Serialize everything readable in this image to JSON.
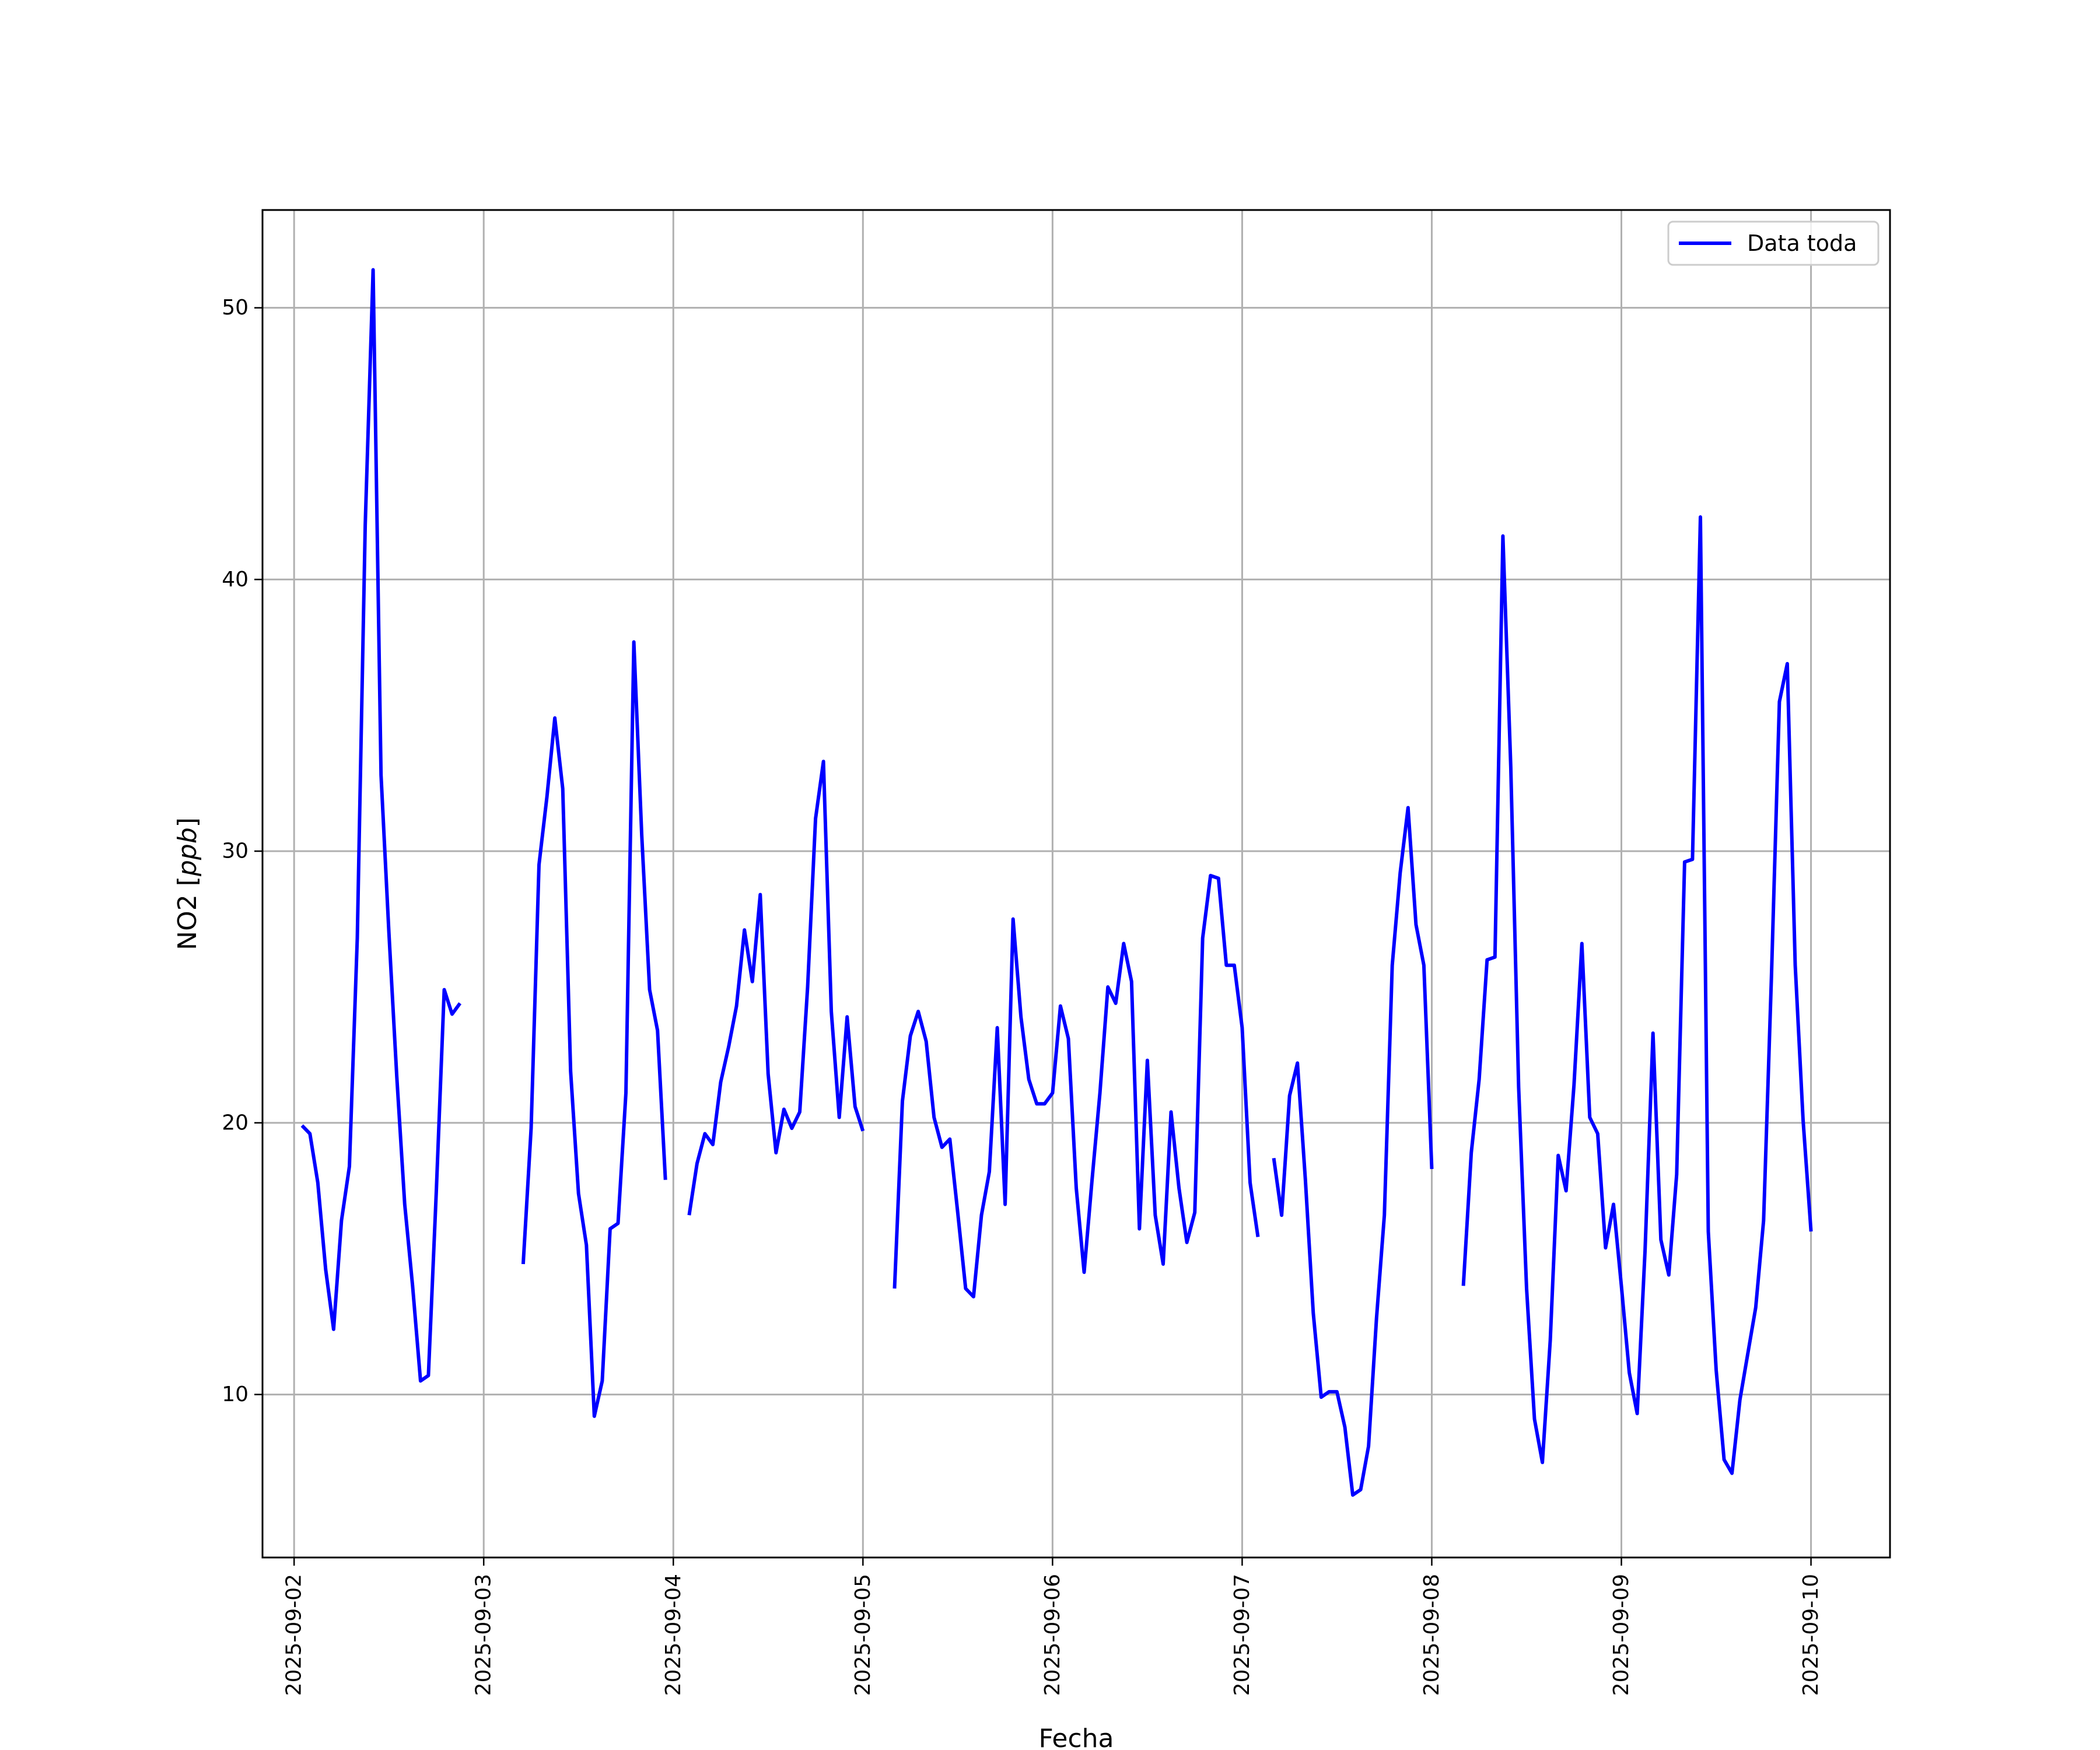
{
  "chart_data": {
    "type": "line",
    "xlabel": "Fecha",
    "ylabel_main": "NO2 [",
    "ylabel_unit": "ppb",
    "ylabel_close": "]",
    "xlim": [
      "2025-09-01T20:00",
      "2025-09-10T10:00"
    ],
    "ylim": [
      4,
      53.6
    ],
    "x_ticks": [
      "2025-09-02",
      "2025-09-03",
      "2025-09-04",
      "2025-09-05",
      "2025-09-06",
      "2025-09-07",
      "2025-09-08",
      "2025-09-09",
      "2025-09-10"
    ],
    "y_ticks": [
      10,
      20,
      30,
      40,
      50
    ],
    "y_tick_labels": [
      "10",
      "20",
      "30",
      "40",
      "50"
    ],
    "grid": true,
    "legend_position": "top-right",
    "colors": {
      "series": "#0000ff"
    },
    "series": [
      {
        "name": "Data toda",
        "segments": [
          [
            [
              "2025-09-02T01:00",
              19.9
            ],
            [
              "2025-09-02T02:00",
              19.6
            ],
            [
              "2025-09-02T03:00",
              17.8
            ],
            [
              "2025-09-02T04:00",
              14.6
            ],
            [
              "2025-09-02T05:00",
              12.4
            ],
            [
              "2025-09-02T06:00",
              16.4
            ],
            [
              "2025-09-02T07:00",
              18.4
            ],
            [
              "2025-09-02T08:00",
              26.8
            ],
            [
              "2025-09-02T09:00",
              42.0
            ],
            [
              "2025-09-02T10:00",
              51.4
            ],
            [
              "2025-09-02T11:00",
              32.8
            ],
            [
              "2025-09-02T12:00",
              27.0
            ],
            [
              "2025-09-02T13:00",
              21.7
            ],
            [
              "2025-09-02T14:00",
              17.0
            ],
            [
              "2025-09-02T15:00",
              14.0
            ],
            [
              "2025-09-02T16:00",
              10.5
            ],
            [
              "2025-09-02T17:00",
              10.7
            ],
            [
              "2025-09-02T18:00",
              17.5
            ],
            [
              "2025-09-02T19:00",
              24.9
            ],
            [
              "2025-09-02T20:00",
              24.0
            ],
            [
              "2025-09-02T21:00",
              24.4
            ]
          ],
          [
            [
              "2025-09-03T05:00",
              14.8
            ],
            [
              "2025-09-03T06:00",
              19.8
            ],
            [
              "2025-09-03T07:00",
              29.5
            ],
            [
              "2025-09-03T08:00",
              32.0
            ],
            [
              "2025-09-03T09:00",
              34.9
            ],
            [
              "2025-09-03T10:00",
              32.3
            ],
            [
              "2025-09-03T11:00",
              21.9
            ],
            [
              "2025-09-03T12:00",
              17.4
            ],
            [
              "2025-09-03T13:00",
              15.5
            ],
            [
              "2025-09-03T14:00",
              9.2
            ],
            [
              "2025-09-03T15:00",
              10.5
            ],
            [
              "2025-09-03T16:00",
              16.1
            ],
            [
              "2025-09-03T17:00",
              16.3
            ],
            [
              "2025-09-03T18:00",
              21.1
            ],
            [
              "2025-09-03T19:00",
              37.7
            ],
            [
              "2025-09-03T20:00",
              30.6
            ],
            [
              "2025-09-03T21:00",
              24.9
            ],
            [
              "2025-09-03T22:00",
              23.4
            ],
            [
              "2025-09-03T23:00",
              17.9
            ]
          ],
          [
            [
              "2025-09-04T02:00",
              16.6
            ],
            [
              "2025-09-04T03:00",
              18.5
            ],
            [
              "2025-09-04T04:00",
              19.6
            ],
            [
              "2025-09-04T05:00",
              19.2
            ],
            [
              "2025-09-04T06:00",
              21.5
            ],
            [
              "2025-09-04T07:00",
              22.8
            ],
            [
              "2025-09-04T08:00",
              24.3
            ],
            [
              "2025-09-04T09:00",
              27.1
            ],
            [
              "2025-09-04T10:00",
              25.2
            ],
            [
              "2025-09-04T11:00",
              28.4
            ],
            [
              "2025-09-04T12:00",
              21.8
            ],
            [
              "2025-09-04T13:00",
              18.9
            ],
            [
              "2025-09-04T14:00",
              20.5
            ],
            [
              "2025-09-04T15:00",
              19.8
            ],
            [
              "2025-09-04T16:00",
              20.4
            ],
            [
              "2025-09-04T17:00",
              25.0
            ],
            [
              "2025-09-04T18:00",
              31.2
            ],
            [
              "2025-09-04T19:00",
              33.3
            ],
            [
              "2025-09-04T20:00",
              24.1
            ],
            [
              "2025-09-04T21:00",
              20.2
            ],
            [
              "2025-09-04T22:00",
              23.9
            ],
            [
              "2025-09-04T23:00",
              20.6
            ],
            [
              "2025-09-05T00:00",
              19.7
            ]
          ],
          [
            [
              "2025-09-05T04:00",
              13.9
            ],
            [
              "2025-09-05T05:00",
              20.8
            ],
            [
              "2025-09-05T06:00",
              23.2
            ],
            [
              "2025-09-05T07:00",
              24.1
            ],
            [
              "2025-09-05T08:00",
              23.0
            ],
            [
              "2025-09-05T09:00",
              20.2
            ],
            [
              "2025-09-05T10:00",
              19.1
            ],
            [
              "2025-09-05T11:00",
              19.4
            ],
            [
              "2025-09-05T12:00",
              16.7
            ],
            [
              "2025-09-05T13:00",
              13.9
            ],
            [
              "2025-09-05T14:00",
              13.6
            ],
            [
              "2025-09-05T15:00",
              16.6
            ],
            [
              "2025-09-05T16:00",
              18.2
            ],
            [
              "2025-09-05T17:00",
              23.5
            ],
            [
              "2025-09-05T18:00",
              17.0
            ],
            [
              "2025-09-05T19:00",
              27.5
            ],
            [
              "2025-09-05T20:00",
              23.9
            ],
            [
              "2025-09-05T21:00",
              21.6
            ],
            [
              "2025-09-05T22:00",
              20.7
            ],
            [
              "2025-09-05T23:00",
              20.7
            ],
            [
              "2025-09-06T00:00",
              21.1
            ],
            [
              "2025-09-06T01:00",
              24.3
            ],
            [
              "2025-09-06T02:00",
              23.1
            ],
            [
              "2025-09-06T03:00",
              17.6
            ],
            [
              "2025-09-06T04:00",
              14.5
            ],
            [
              "2025-09-06T05:00",
              17.9
            ],
            [
              "2025-09-06T06:00",
              21.1
            ],
            [
              "2025-09-06T07:00",
              25.0
            ],
            [
              "2025-09-06T08:00",
              24.4
            ],
            [
              "2025-09-06T09:00",
              26.6
            ],
            [
              "2025-09-06T10:00",
              25.2
            ],
            [
              "2025-09-06T11:00",
              16.1
            ],
            [
              "2025-09-06T12:00",
              22.3
            ],
            [
              "2025-09-06T13:00",
              16.6
            ],
            [
              "2025-09-06T14:00",
              14.8
            ],
            [
              "2025-09-06T15:00",
              20.4
            ],
            [
              "2025-09-06T16:00",
              17.6
            ],
            [
              "2025-09-06T17:00",
              15.6
            ],
            [
              "2025-09-06T18:00",
              16.7
            ],
            [
              "2025-09-06T19:00",
              26.8
            ],
            [
              "2025-09-06T20:00",
              29.1
            ],
            [
              "2025-09-06T21:00",
              29.0
            ],
            [
              "2025-09-06T22:00",
              25.8
            ],
            [
              "2025-09-06T23:00",
              25.8
            ],
            [
              "2025-09-07T00:00",
              23.5
            ],
            [
              "2025-09-07T01:00",
              17.8
            ],
            [
              "2025-09-07T02:00",
              15.8
            ]
          ],
          [
            [
              "2025-09-07T04:00",
              18.7
            ],
            [
              "2025-09-07T05:00",
              16.6
            ],
            [
              "2025-09-07T06:00",
              21.0
            ],
            [
              "2025-09-07T07:00",
              22.2
            ],
            [
              "2025-09-07T08:00",
              17.9
            ],
            [
              "2025-09-07T09:00",
              13.0
            ],
            [
              "2025-09-07T10:00",
              9.9
            ],
            [
              "2025-09-07T11:00",
              10.1
            ],
            [
              "2025-09-07T12:00",
              10.1
            ],
            [
              "2025-09-07T13:00",
              8.8
            ],
            [
              "2025-09-07T14:00",
              6.3
            ],
            [
              "2025-09-07T15:00",
              6.5
            ],
            [
              "2025-09-07T16:00",
              8.1
            ],
            [
              "2025-09-07T17:00",
              12.8
            ],
            [
              "2025-09-07T18:00",
              16.6
            ],
            [
              "2025-09-07T19:00",
              25.8
            ],
            [
              "2025-09-07T20:00",
              29.2
            ],
            [
              "2025-09-07T21:00",
              31.6
            ],
            [
              "2025-09-07T22:00",
              27.3
            ],
            [
              "2025-09-07T23:00",
              25.8
            ],
            [
              "2025-09-08T00:00",
              18.3
            ]
          ],
          [
            [
              "2025-09-08T04:00",
              14.0
            ],
            [
              "2025-09-08T05:00",
              18.9
            ],
            [
              "2025-09-08T06:00",
              21.6
            ],
            [
              "2025-09-08T07:00",
              26.0
            ],
            [
              "2025-09-08T08:00",
              26.1
            ],
            [
              "2025-09-08T09:00",
              41.6
            ],
            [
              "2025-09-08T10:00",
              33.1
            ],
            [
              "2025-09-08T11:00",
              21.3
            ],
            [
              "2025-09-08T12:00",
              13.9
            ],
            [
              "2025-09-08T13:00",
              9.1
            ],
            [
              "2025-09-08T14:00",
              7.5
            ],
            [
              "2025-09-08T15:00",
              12.0
            ],
            [
              "2025-09-08T16:00",
              18.8
            ],
            [
              "2025-09-08T17:00",
              17.5
            ],
            [
              "2025-09-08T18:00",
              21.4
            ],
            [
              "2025-09-08T19:00",
              26.6
            ],
            [
              "2025-09-08T20:00",
              20.2
            ],
            [
              "2025-09-08T21:00",
              19.6
            ],
            [
              "2025-09-08T22:00",
              15.4
            ],
            [
              "2025-09-08T23:00",
              17.0
            ],
            [
              "2025-09-09T00:00",
              14.0
            ],
            [
              "2025-09-09T01:00",
              10.8
            ],
            [
              "2025-09-09T02:00",
              9.3
            ],
            [
              "2025-09-09T03:00",
              15.3
            ],
            [
              "2025-09-09T04:00",
              23.3
            ],
            [
              "2025-09-09T05:00",
              15.7
            ],
            [
              "2025-09-09T06:00",
              14.4
            ],
            [
              "2025-09-09T07:00",
              18.1
            ],
            [
              "2025-09-09T08:00",
              29.6
            ],
            [
              "2025-09-09T09:00",
              29.7
            ],
            [
              "2025-09-09T10:00",
              42.3
            ],
            [
              "2025-09-09T11:00",
              16.0
            ],
            [
              "2025-09-09T12:00",
              10.9
            ],
            [
              "2025-09-09T13:00",
              7.6
            ],
            [
              "2025-09-09T14:00",
              7.1
            ],
            [
              "2025-09-09T15:00",
              9.8
            ],
            [
              "2025-09-09T16:00",
              11.5
            ],
            [
              "2025-09-09T17:00",
              13.2
            ],
            [
              "2025-09-09T18:00",
              16.4
            ],
            [
              "2025-09-09T19:00",
              25.4
            ],
            [
              "2025-09-09T20:00",
              35.5
            ],
            [
              "2025-09-09T21:00",
              36.9
            ],
            [
              "2025-09-09T22:00",
              25.8
            ],
            [
              "2025-09-09T23:00",
              20.1
            ],
            [
              "2025-09-10T00:00",
              16.0
            ]
          ]
        ]
      }
    ]
  }
}
